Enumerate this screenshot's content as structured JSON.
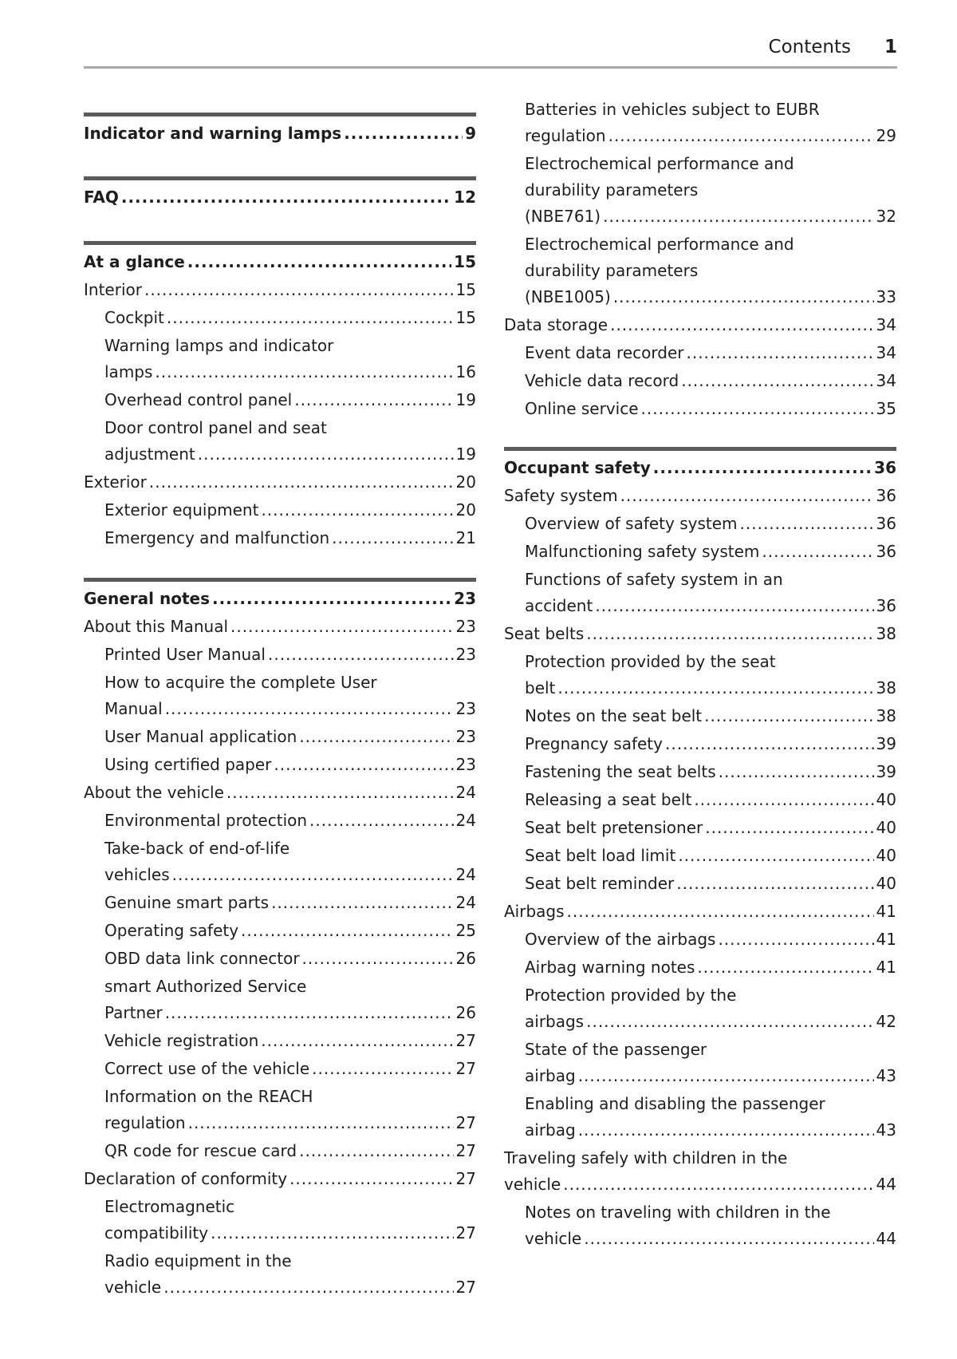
{
  "header": {
    "title": "Contents",
    "page": "1"
  },
  "left_sections": [
    {
      "entries": [
        {
          "level": "head",
          "lines": [
            "Indicator and warning lamps"
          ],
          "page": "9"
        }
      ]
    },
    {
      "entries": [
        {
          "level": "head",
          "lines": [
            "FAQ"
          ],
          "page": "12"
        }
      ]
    },
    {
      "entries": [
        {
          "level": "head",
          "lines": [
            "At a glance"
          ],
          "page": "15"
        },
        {
          "level": "l0",
          "lines": [
            "Interior"
          ],
          "page": "15"
        },
        {
          "level": "l1",
          "lines": [
            "Cockpit"
          ],
          "page": "15"
        },
        {
          "level": "l1",
          "lines": [
            "Warning lamps and indicator",
            "lamps"
          ],
          "page": "16"
        },
        {
          "level": "l1",
          "lines": [
            "Overhead control panel"
          ],
          "page": "19"
        },
        {
          "level": "l1",
          "lines": [
            "Door control panel and seat",
            "adjustment"
          ],
          "page": "19"
        },
        {
          "level": "l0",
          "lines": [
            "Exterior"
          ],
          "page": "20"
        },
        {
          "level": "l1",
          "lines": [
            "Exterior equipment"
          ],
          "page": "20"
        },
        {
          "level": "l1",
          "lines": [
            "Emergency and malfunction"
          ],
          "page": "21"
        }
      ]
    },
    {
      "entries": [
        {
          "level": "head",
          "lines": [
            "General notes"
          ],
          "page": "23"
        },
        {
          "level": "l0",
          "lines": [
            "About this Manual"
          ],
          "page": "23"
        },
        {
          "level": "l1",
          "lines": [
            "Printed User Manual"
          ],
          "page": "23"
        },
        {
          "level": "l1",
          "lines": [
            "How to acquire the complete User",
            "Manual"
          ],
          "page": "23"
        },
        {
          "level": "l1",
          "lines": [
            "User Manual application"
          ],
          "page": "23"
        },
        {
          "level": "l1",
          "lines": [
            "Using certified paper"
          ],
          "page": "23"
        },
        {
          "level": "l0",
          "lines": [
            "About the vehicle"
          ],
          "page": "24"
        },
        {
          "level": "l1",
          "lines": [
            "Environmental protection"
          ],
          "page": "24"
        },
        {
          "level": "l1",
          "lines": [
            "Take-back of end-of-life",
            "vehicles"
          ],
          "page": "24"
        },
        {
          "level": "l1",
          "lines": [
            "Genuine smart parts"
          ],
          "page": "24"
        },
        {
          "level": "l1",
          "lines": [
            "Operating safety"
          ],
          "page": "25"
        },
        {
          "level": "l1",
          "lines": [
            "OBD data link connector"
          ],
          "page": "26"
        },
        {
          "level": "l1",
          "lines": [
            "smart Authorized Service",
            "Partner"
          ],
          "page": "26"
        },
        {
          "level": "l1",
          "lines": [
            "Vehicle registration"
          ],
          "page": "27"
        },
        {
          "level": "l1",
          "lines": [
            "Correct use of the vehicle"
          ],
          "page": "27"
        },
        {
          "level": "l1",
          "lines": [
            "Information on the REACH",
            "regulation"
          ],
          "page": "27"
        },
        {
          "level": "l1",
          "lines": [
            "QR code for rescue card"
          ],
          "page": "27"
        },
        {
          "level": "l0",
          "lines": [
            "Declaration of conformity"
          ],
          "page": "27"
        },
        {
          "level": "l1",
          "lines": [
            "Electromagnetic",
            "compatibility"
          ],
          "page": "27"
        },
        {
          "level": "l1",
          "lines": [
            "Radio equipment in the",
            "vehicle"
          ],
          "page": "27"
        }
      ]
    }
  ],
  "right_sections": [
    {
      "entries": [
        {
          "level": "l1",
          "lines": [
            "Batteries in vehicles subject to EUBR",
            "regulation"
          ],
          "page": "29"
        },
        {
          "level": "l1",
          "lines": [
            "Electrochemical performance and",
            "durability parameters",
            "(NBE761)"
          ],
          "page": "32"
        },
        {
          "level": "l1",
          "lines": [
            "Electrochemical performance and",
            "durability parameters",
            "(NBE1005)"
          ],
          "page": "33"
        },
        {
          "level": "l0",
          "lines": [
            "Data storage"
          ],
          "page": "34"
        },
        {
          "level": "l1",
          "lines": [
            "Event data recorder"
          ],
          "page": "34"
        },
        {
          "level": "l1",
          "lines": [
            "Vehicle data record"
          ],
          "page": "34"
        },
        {
          "level": "l1",
          "lines": [
            "Online service"
          ],
          "page": "35"
        }
      ]
    },
    {
      "entries": [
        {
          "level": "head",
          "lines": [
            "Occupant safety"
          ],
          "page": "36"
        },
        {
          "level": "l0",
          "lines": [
            "Safety system"
          ],
          "page": "36"
        },
        {
          "level": "l1",
          "lines": [
            "Overview of safety system"
          ],
          "page": "36"
        },
        {
          "level": "l1",
          "lines": [
            "Malfunctioning safety system"
          ],
          "page": "36"
        },
        {
          "level": "l1",
          "lines": [
            "Functions of safety system in an",
            "accident"
          ],
          "page": "36"
        },
        {
          "level": "l0",
          "lines": [
            "Seat belts"
          ],
          "page": "38"
        },
        {
          "level": "l1",
          "lines": [
            "Protection provided by the seat",
            "belt"
          ],
          "page": "38"
        },
        {
          "level": "l1",
          "lines": [
            "Notes on the seat belt"
          ],
          "page": "38"
        },
        {
          "level": "l1",
          "lines": [
            "Pregnancy safety"
          ],
          "page": "39"
        },
        {
          "level": "l1",
          "lines": [
            "Fastening the seat belts"
          ],
          "page": "39"
        },
        {
          "level": "l1",
          "lines": [
            "Releasing a seat belt"
          ],
          "page": "40"
        },
        {
          "level": "l1",
          "lines": [
            "Seat belt pretensioner"
          ],
          "page": "40"
        },
        {
          "level": "l1",
          "lines": [
            "Seat belt load limit"
          ],
          "page": "40"
        },
        {
          "level": "l1",
          "lines": [
            "Seat belt reminder"
          ],
          "page": "40"
        },
        {
          "level": "l0",
          "lines": [
            "Airbags"
          ],
          "page": "41"
        },
        {
          "level": "l1",
          "lines": [
            "Overview of the airbags"
          ],
          "page": "41"
        },
        {
          "level": "l1",
          "lines": [
            "Airbag warning notes"
          ],
          "page": "41"
        },
        {
          "level": "l1",
          "lines": [
            "Protection provided by the",
            "airbags"
          ],
          "page": "42"
        },
        {
          "level": "l1",
          "lines": [
            "State of the passenger",
            "airbag"
          ],
          "page": "43"
        },
        {
          "level": "l1",
          "lines": [
            "Enabling and disabling the passenger",
            "airbag"
          ],
          "page": "43"
        },
        {
          "level": "l0",
          "lines": [
            "Traveling safely with children in the",
            "vehicle"
          ],
          "page": "44"
        },
        {
          "level": "l1",
          "lines": [
            "Notes on traveling with children in the",
            "vehicle"
          ],
          "page": "44"
        }
      ]
    }
  ]
}
